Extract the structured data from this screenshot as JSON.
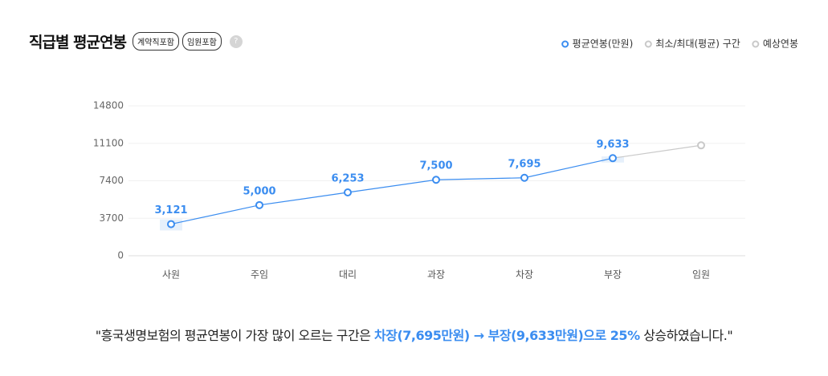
{
  "header": {
    "title": "직급별 평균연봉",
    "badges": [
      "계약직포함",
      "임원포함"
    ],
    "help": "?"
  },
  "chart_data": {
    "type": "line",
    "categories": [
      "사원",
      "주임",
      "대리",
      "과장",
      "차장",
      "부장",
      "임원"
    ],
    "series": [
      {
        "name": "평균연봉(만원)",
        "color": "#3b8df0",
        "values": [
          3121,
          5000,
          6253,
          7500,
          7695,
          9633,
          null
        ],
        "value_labels": [
          "3,121",
          "5,000",
          "6,253",
          "7,500",
          "7,695",
          "9,633",
          null
        ]
      },
      {
        "name": "예상연봉",
        "color": "#c9c9c9",
        "values": [
          null,
          null,
          null,
          null,
          null,
          9633,
          10900
        ]
      }
    ],
    "range": {
      "name": "최소/최대(평균) 구간",
      "color": "#e6f0fb",
      "low": [
        2500,
        null,
        null,
        null,
        null,
        9200,
        null
      ],
      "high": [
        3600,
        null,
        null,
        null,
        null,
        9800,
        null
      ]
    },
    "ylim": [
      0,
      14800
    ],
    "yticks": [
      0,
      3700,
      7400,
      11100,
      14800
    ],
    "grid": true,
    "legend": "top-right"
  },
  "summary": {
    "prefix": "\"흥국생명보험의 평균연봉이 가장 많이 오르는 구간은 ",
    "highlight": "차장(7,695만원) → 부장(9,633만원)으로 25%",
    "suffix": " 상승하였습니다.\""
  }
}
